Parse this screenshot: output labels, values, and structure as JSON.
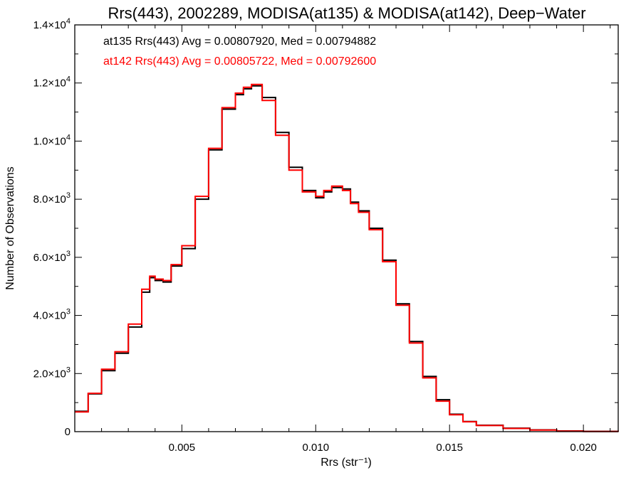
{
  "chart_data": {
    "type": "line",
    "title": "Rrs(443), 2002289, MODISA(at135) & MODISA(at142), Deep−Water",
    "xlabel": "Rrs (str⁻¹)",
    "ylabel": "Number of Observations",
    "xlim": [
      0.001,
      0.0213
    ],
    "ylim": [
      0,
      14000
    ],
    "x_ticks": [
      0.005,
      0.01,
      0.015,
      0.02
    ],
    "x_tick_labels": [
      "0.005",
      "0.010",
      "0.015",
      "0.020"
    ],
    "y_ticks": [
      0,
      2000,
      4000,
      6000,
      8000,
      10000,
      12000,
      14000
    ],
    "y_tick_labels": [
      {
        "mant": "0",
        "exp": ""
      },
      {
        "mant": "2.0×10",
        "exp": "3"
      },
      {
        "mant": "4.0×10",
        "exp": "3"
      },
      {
        "mant": "6.0×10",
        "exp": "3"
      },
      {
        "mant": "8.0×10",
        "exp": "3"
      },
      {
        "mant": "1.0×10",
        "exp": "4"
      },
      {
        "mant": "1.2×10",
        "exp": "4"
      },
      {
        "mant": "1.4×10",
        "exp": "4"
      }
    ],
    "grid": false,
    "legend_position": "top-left",
    "annotations": [
      {
        "text": "at135 Rrs(443) Avg = 0.00807920, Med = 0.00794882",
        "color": "#000000"
      },
      {
        "text": "at142 Rrs(443) Avg = 0.00805722, Med = 0.00792600",
        "color": "#ff0000"
      }
    ],
    "series": [
      {
        "color": "#000000",
        "x": [
          0.001,
          0.0015,
          0.002,
          0.0025,
          0.003,
          0.0035,
          0.0038,
          0.004,
          0.0043,
          0.0046,
          0.005,
          0.0055,
          0.006,
          0.0065,
          0.007,
          0.0073,
          0.0076,
          0.008,
          0.0085,
          0.009,
          0.0095,
          0.01,
          0.0103,
          0.0106,
          0.011,
          0.0113,
          0.0116,
          0.012,
          0.0125,
          0.013,
          0.0135,
          0.014,
          0.0145,
          0.015,
          0.0155,
          0.016,
          0.017,
          0.018,
          0.019,
          0.02,
          0.0213
        ],
        "values": [
          700,
          1300,
          2100,
          2700,
          3600,
          4800,
          5300,
          5200,
          5150,
          5700,
          6300,
          8000,
          9700,
          11100,
          11600,
          11800,
          11900,
          11500,
          10300,
          9100,
          8300,
          8050,
          8250,
          8400,
          8350,
          7900,
          7600,
          7000,
          5900,
          4400,
          3100,
          1900,
          1100,
          600,
          350,
          220,
          120,
          60,
          25,
          10,
          0
        ]
      },
      {
        "color": "#ff0000",
        "x": [
          0.001,
          0.0015,
          0.002,
          0.0025,
          0.003,
          0.0035,
          0.0038,
          0.004,
          0.0043,
          0.0046,
          0.005,
          0.0055,
          0.006,
          0.0065,
          0.007,
          0.0073,
          0.0076,
          0.008,
          0.0085,
          0.009,
          0.0095,
          0.01,
          0.0103,
          0.0106,
          0.011,
          0.0113,
          0.0116,
          0.012,
          0.0125,
          0.013,
          0.0135,
          0.014,
          0.0145,
          0.015,
          0.0155,
          0.016,
          0.017,
          0.018,
          0.019,
          0.02,
          0.0213
        ],
        "values": [
          680,
          1320,
          2150,
          2750,
          3700,
          4900,
          5350,
          5250,
          5200,
          5750,
          6400,
          8100,
          9750,
          11150,
          11650,
          11850,
          11950,
          11400,
          10200,
          9000,
          8250,
          8100,
          8300,
          8450,
          8300,
          7850,
          7550,
          6950,
          5850,
          4350,
          3050,
          1850,
          1050,
          580,
          340,
          210,
          110,
          55,
          20,
          8,
          0
        ]
      }
    ]
  }
}
